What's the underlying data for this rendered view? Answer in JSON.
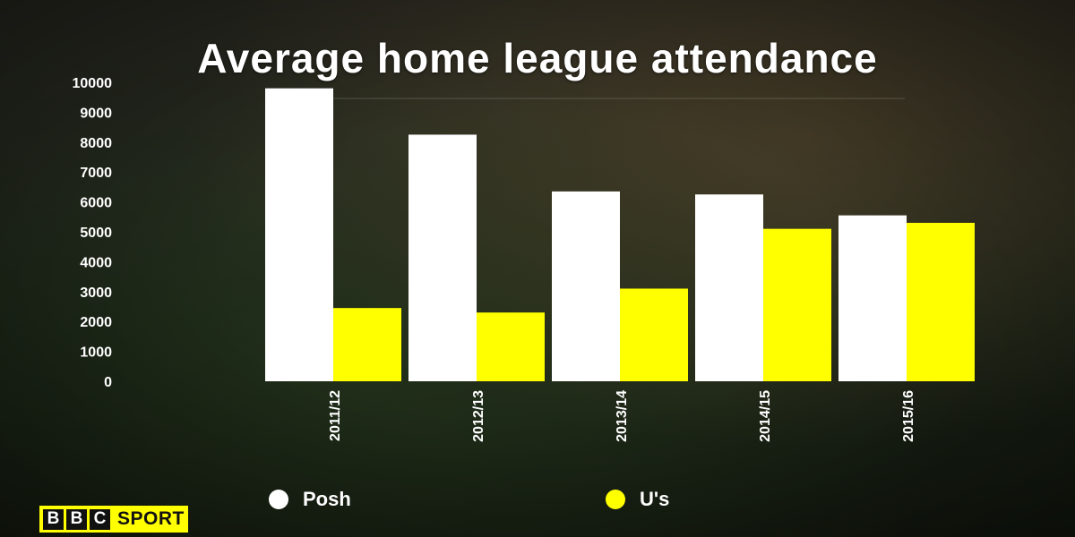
{
  "chart_data": {
    "type": "bar",
    "title": "Average home league attendance",
    "categories": [
      "2011/12",
      "2012/13",
      "2013/14",
      "2014/15",
      "2015/16"
    ],
    "series": [
      {
        "name": "Posh",
        "color": "#ffffff",
        "values": [
          9800,
          8250,
          6350,
          6250,
          5550
        ]
      },
      {
        "name": "U's",
        "color": "#ffff00",
        "values": [
          2450,
          2300,
          3100,
          5100,
          5300
        ]
      }
    ],
    "ylim": [
      0,
      10000
    ],
    "yticks": [
      "0",
      "1000",
      "2000",
      "3000",
      "4000",
      "5000",
      "6000",
      "7000",
      "8000",
      "9000",
      "10000"
    ],
    "xlabel": "",
    "ylabel": "",
    "grid": false,
    "legend": "bottom"
  },
  "branding": {
    "logo_letters": [
      "B",
      "B",
      "C"
    ],
    "logo_word": "SPORT",
    "logo_color": "#ffff00"
  }
}
